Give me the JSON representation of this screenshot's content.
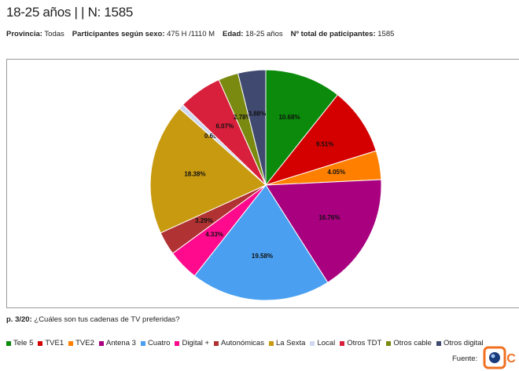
{
  "header": {
    "title": "18-25 años | | N: 1585",
    "filters": [
      {
        "label": "Provincia:",
        "value": "Todas"
      },
      {
        "label": "Participantes según sexo:",
        "value": "475 H /1110 M"
      },
      {
        "label": "Edad:",
        "value": "18-25 años"
      },
      {
        "label": "Nº total de paticipantes:",
        "value": "1585"
      }
    ]
  },
  "chart_data": {
    "type": "pie",
    "categories": [
      "Tele 5",
      "TVE1",
      "TVE2",
      "Antena 3",
      "Cuatro",
      "Digital +",
      "Autonómicas",
      "La Sexta",
      "Local",
      "Otros TDT",
      "Otros cable",
      "Otros digital"
    ],
    "values": [
      10.68,
      9.51,
      4.05,
      16.76,
      19.58,
      4.33,
      3.29,
      18.38,
      0.69,
      6.07,
      2.78,
      3.88
    ],
    "value_labels": [
      "10.68%",
      "9.51%",
      "4.05%",
      "16.76%",
      "19.58%",
      "4.33%",
      "3.29%",
      "18.38%",
      "0.69%",
      "6.07%",
      "2.78%",
      "3.88%"
    ],
    "colors": [
      "#0b8a0b",
      "#d40000",
      "#ff8000",
      "#a8007f",
      "#4a9ff0",
      "#ff0a8c",
      "#b03232",
      "#c89a10",
      "#d0d8f0",
      "#d8203c",
      "#7a8a10",
      "#404a70"
    ]
  },
  "question": {
    "label": "p. 3/20:",
    "text": "¿Cuáles son tus cadenas de TV preferidas?"
  },
  "footer": {
    "source": "Fuente:"
  }
}
